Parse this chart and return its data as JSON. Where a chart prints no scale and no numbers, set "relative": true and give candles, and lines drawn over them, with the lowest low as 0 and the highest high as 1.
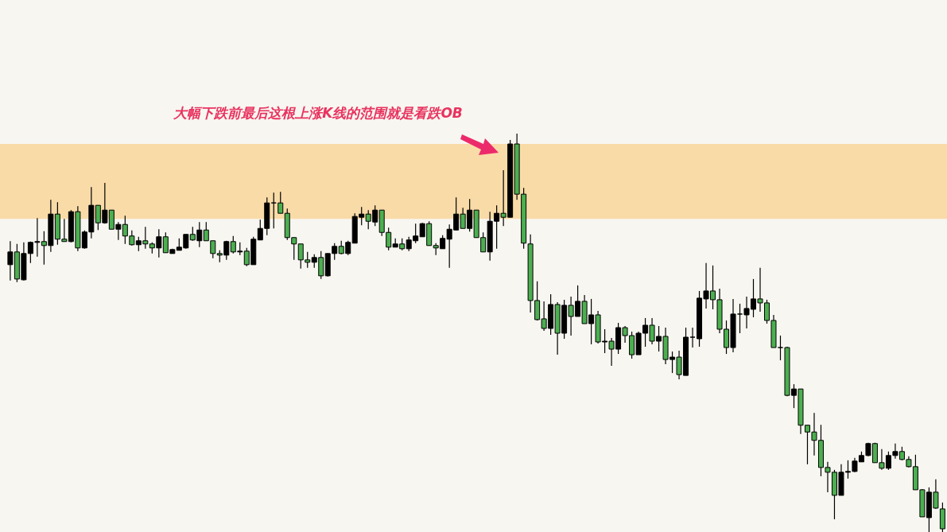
{
  "chart_data": {
    "type": "candlestick",
    "relative": true,
    "annotations": [
      "大幅下跌前最后这根上涨K线的范围就是看跌OB"
    ],
    "bands": [
      {
        "axis": "y",
        "from": 0.786,
        "to": 0.974,
        "color": "#f9dba8"
      }
    ],
    "categories": [
      null,
      null,
      null,
      null,
      null,
      null,
      null,
      null,
      null,
      null,
      null,
      null,
      null,
      null,
      null,
      null,
      null,
      null,
      null,
      null,
      null,
      null,
      null,
      null,
      null,
      null,
      null,
      null,
      null,
      null,
      null,
      null,
      null,
      null,
      null,
      null,
      null,
      null,
      null,
      null,
      null,
      null,
      null,
      null,
      null,
      null,
      null,
      null,
      null,
      null,
      null,
      null,
      null,
      null,
      null,
      null,
      null,
      null,
      null,
      null,
      null,
      null,
      null,
      null,
      null,
      null,
      null,
      null,
      null,
      null,
      null,
      null,
      null,
      null,
      null,
      null,
      null,
      null,
      null,
      null,
      null,
      null,
      null,
      null,
      null,
      null,
      null,
      null,
      null,
      null,
      null,
      null,
      null,
      null,
      null,
      null,
      null,
      null,
      null,
      null,
      null,
      null,
      null,
      null,
      null,
      null,
      null,
      null,
      null,
      null,
      null,
      null,
      null,
      null,
      null,
      null,
      null,
      null,
      null,
      null,
      null,
      null,
      null,
      null,
      null,
      null,
      null,
      null,
      null,
      null,
      null,
      null,
      null,
      null,
      null,
      null,
      null,
      null,
      null
    ],
    "ohlc": [
      [
        0.671,
        0.73,
        0.631,
        0.703
      ],
      [
        0.703,
        0.723,
        0.627,
        0.635
      ],
      [
        0.633,
        0.727,
        0.631,
        0.699
      ],
      [
        0.699,
        0.729,
        0.675,
        0.727
      ],
      [
        0.727,
        0.788,
        0.691,
        0.729
      ],
      [
        0.729,
        0.755,
        0.671,
        0.719
      ],
      [
        0.719,
        0.834,
        0.703,
        0.798
      ],
      [
        0.798,
        0.828,
        0.721,
        0.735
      ],
      [
        0.735,
        0.786,
        0.729,
        0.729
      ],
      [
        0.729,
        0.808,
        0.727,
        0.804
      ],
      [
        0.804,
        0.818,
        0.705,
        0.713
      ],
      [
        0.713,
        0.757,
        0.711,
        0.753
      ],
      [
        0.753,
        0.866,
        0.737,
        0.82
      ],
      [
        0.82,
        0.82,
        0.758,
        0.776
      ],
      [
        0.776,
        0.876,
        0.774,
        0.808
      ],
      [
        0.808,
        0.808,
        0.76,
        0.76
      ],
      [
        0.76,
        0.778,
        0.733,
        0.772
      ],
      [
        0.772,
        0.794,
        0.723,
        0.743
      ],
      [
        0.743,
        0.757,
        0.719,
        0.721
      ],
      [
        0.721,
        0.741,
        0.705,
        0.731
      ],
      [
        0.731,
        0.766,
        0.711,
        0.723
      ],
      [
        0.723,
        0.727,
        0.699,
        0.713
      ],
      [
        0.713,
        0.76,
        0.689,
        0.741
      ],
      [
        0.741,
        0.752,
        0.701,
        0.701
      ],
      [
        0.699,
        0.711,
        0.699,
        0.709
      ],
      [
        0.707,
        0.737,
        0.707,
        0.715
      ],
      [
        0.713,
        0.747,
        0.711,
        0.747
      ],
      [
        0.747,
        0.766,
        0.731,
        0.733
      ],
      [
        0.731,
        0.778,
        0.715,
        0.758
      ],
      [
        0.758,
        0.778,
        0.731,
        0.731
      ],
      [
        0.731,
        0.731,
        0.687,
        0.699
      ],
      [
        0.699,
        0.707,
        0.677,
        0.695
      ],
      [
        0.695,
        0.731,
        0.683,
        0.729
      ],
      [
        0.729,
        0.743,
        0.699,
        0.703
      ],
      [
        0.703,
        0.727,
        0.695,
        0.705
      ],
      [
        0.705,
        0.713,
        0.667,
        0.671
      ],
      [
        0.671,
        0.741,
        0.671,
        0.735
      ],
      [
        0.733,
        0.784,
        0.733,
        0.762
      ],
      [
        0.762,
        0.84,
        0.745,
        0.826
      ],
      [
        0.826,
        0.852,
        0.762,
        0.826
      ],
      [
        0.826,
        0.854,
        0.8,
        0.8
      ],
      [
        0.8,
        0.812,
        0.733,
        0.739
      ],
      [
        0.739,
        0.739,
        0.683,
        0.723
      ],
      [
        0.723,
        0.723,
        0.661,
        0.683
      ],
      [
        0.683,
        0.703,
        0.663,
        0.677
      ],
      [
        0.677,
        0.697,
        0.663,
        0.689
      ],
      [
        0.689,
        0.705,
        0.635,
        0.643
      ],
      [
        0.643,
        0.699,
        0.641,
        0.699
      ],
      [
        0.699,
        0.725,
        0.683,
        0.717
      ],
      [
        0.717,
        0.731,
        0.697,
        0.699
      ],
      [
        0.699,
        0.731,
        0.695,
        0.727
      ],
      [
        0.725,
        0.8,
        0.725,
        0.792
      ],
      [
        0.79,
        0.816,
        0.77,
        0.798
      ],
      [
        0.798,
        0.808,
        0.76,
        0.78
      ],
      [
        0.778,
        0.82,
        0.768,
        0.808
      ],
      [
        0.808,
        0.808,
        0.743,
        0.752
      ],
      [
        0.752,
        0.764,
        0.707,
        0.715
      ],
      [
        0.715,
        0.737,
        0.715,
        0.723
      ],
      [
        0.723,
        0.737,
        0.707,
        0.711
      ],
      [
        0.711,
        0.741,
        0.705,
        0.733
      ],
      [
        0.731,
        0.774,
        0.725,
        0.743
      ],
      [
        0.741,
        0.776,
        0.741,
        0.774
      ],
      [
        0.774,
        0.78,
        0.719,
        0.719
      ],
      [
        0.719,
        0.725,
        0.695,
        0.713
      ],
      [
        0.711,
        0.745,
        0.711,
        0.737
      ],
      [
        0.735,
        0.772,
        0.663,
        0.76
      ],
      [
        0.758,
        0.84,
        0.758,
        0.798
      ],
      [
        0.798,
        0.814,
        0.762,
        0.762
      ],
      [
        0.762,
        0.836,
        0.754,
        0.808
      ],
      [
        0.808,
        0.808,
        0.739,
        0.739
      ],
      [
        0.739,
        0.752,
        0.703,
        0.703
      ],
      [
        0.703,
        0.804,
        0.681,
        0.78
      ],
      [
        0.78,
        0.82,
        0.711,
        0.8
      ],
      [
        0.8,
        0.908,
        0.768,
        0.79
      ],
      [
        0.79,
        0.984,
        0.79,
        0.974
      ],
      [
        0.974,
        1,
        0.834,
        0.848
      ],
      [
        0.848,
        0.864,
        0.711,
        0.725
      ],
      [
        0.723,
        0.747,
        0.551,
        0.581
      ],
      [
        0.581,
        0.629,
        0.531,
        0.533
      ],
      [
        0.535,
        0.579,
        0.505,
        0.511
      ],
      [
        0.511,
        0.597,
        0.495,
        0.571
      ],
      [
        0.571,
        0.577,
        0.445,
        0.499
      ],
      [
        0.499,
        0.583,
        0.485,
        0.569
      ],
      [
        0.569,
        0.591,
        0.493,
        0.541
      ],
      [
        0.541,
        0.619,
        0.541,
        0.579
      ],
      [
        0.579,
        0.595,
        0.523,
        0.523
      ],
      [
        0.523,
        0.585,
        0.471,
        0.545
      ],
      [
        0.545,
        0.555,
        0.473,
        0.477
      ],
      [
        0.477,
        0.509,
        0.449,
        0.479
      ],
      [
        0.479,
        0.487,
        0.417,
        0.459
      ],
      [
        0.459,
        0.525,
        0.447,
        0.513
      ],
      [
        0.513,
        0.517,
        0.475,
        0.493
      ],
      [
        0.493,
        0.503,
        0.435,
        0.445
      ],
      [
        0.445,
        0.503,
        0.445,
        0.499
      ],
      [
        0.499,
        0.537,
        0.465,
        0.519
      ],
      [
        0.519,
        0.537,
        0.471,
        0.479
      ],
      [
        0.479,
        0.517,
        0.453,
        0.491
      ],
      [
        0.491,
        0.513,
        0.421,
        0.433
      ],
      [
        0.433,
        0.453,
        0.399,
        0.439
      ],
      [
        0.439,
        0.455,
        0.383,
        0.395
      ],
      [
        0.393,
        0.513,
        0.393,
        0.489
      ],
      [
        0.489,
        0.513,
        0.463,
        0.489
      ],
      [
        0.485,
        0.605,
        0.465,
        0.587
      ],
      [
        0.585,
        0.675,
        0.561,
        0.605
      ],
      [
        0.605,
        0.669,
        0.559,
        0.583
      ],
      [
        0.583,
        0.611,
        0.499,
        0.509
      ],
      [
        0.509,
        0.531,
        0.447,
        0.463
      ],
      [
        0.463,
        0.585,
        0.451,
        0.547
      ],
      [
        0.547,
        0.573,
        0.499,
        0.547
      ],
      [
        0.545,
        0.591,
        0.511,
        0.561
      ],
      [
        0.559,
        0.635,
        0.539,
        0.585
      ],
      [
        0.585,
        0.663,
        0.553,
        0.575
      ],
      [
        0.575,
        0.583,
        0.523,
        0.531
      ],
      [
        0.531,
        0.545,
        0.463,
        0.463
      ],
      [
        0.463,
        0.493,
        0.431,
        0.463
      ],
      [
        0.463,
        0.465,
        0.341,
        0.343
      ],
      [
        0.343,
        0.371,
        0.311,
        0.359
      ],
      [
        0.359,
        0.359,
        0.246,
        0.268
      ],
      [
        0.268,
        0.268,
        0.17,
        0.251
      ],
      [
        0.251,
        0.299,
        0.192,
        0.23
      ],
      [
        0.23,
        0.269,
        0.14,
        0.162
      ],
      [
        0.162,
        0.176,
        0.1,
        0.15
      ],
      [
        0.15,
        0.156,
        0.032,
        0.092
      ],
      [
        0.092,
        0.17,
        0.092,
        0.15
      ],
      [
        0.15,
        0.18,
        0.134,
        0.152
      ],
      [
        0.152,
        0.186,
        0.15,
        0.178
      ],
      [
        0.176,
        0.202,
        0.176,
        0.192
      ],
      [
        0.192,
        0.224,
        0.19,
        0.222
      ],
      [
        0.222,
        0.224,
        0.174,
        0.174
      ],
      [
        0.174,
        0.208,
        0.156,
        0.16
      ],
      [
        0.16,
        0.202,
        0.156,
        0.192
      ],
      [
        0.192,
        0.222,
        0.184,
        0.202
      ],
      [
        0.202,
        0.214,
        0.18,
        0.182
      ],
      [
        0.182,
        0.19,
        0.162,
        0.164
      ],
      [
        0.164,
        0.194,
        0.106,
        0.106
      ],
      [
        0.106,
        0.108,
        0.038,
        0.038
      ],
      [
        0.036,
        0.112,
        0,
        0.1
      ],
      [
        0.1,
        0.132,
        0.058,
        0.06
      ],
      [
        0.058,
        0.074,
        0,
        0.008
      ]
    ],
    "colors": [
      "#000000",
      "#4caf50",
      "#000000",
      "#000000",
      "#000000",
      "#4caf50",
      "#000000",
      "#4caf50",
      "#4caf50",
      "#000000",
      "#4caf50",
      "#000000",
      "#000000",
      "#4caf50",
      "#000000",
      "#4caf50",
      "#000000",
      "#4caf50",
      "#4caf50",
      "#000000",
      "#4caf50",
      "#4caf50",
      "#000000",
      "#4caf50",
      "#000000",
      "#000000",
      "#000000",
      "#4caf50",
      "#000000",
      "#4caf50",
      "#4caf50",
      "#4caf50",
      "#000000",
      "#4caf50",
      "#000000",
      "#4caf50",
      "#000000",
      "#000000",
      "#000000",
      "#000000",
      "#4caf50",
      "#4caf50",
      "#4caf50",
      "#4caf50",
      "#4caf50",
      "#000000",
      "#4caf50",
      "#000000",
      "#000000",
      "#4caf50",
      "#000000",
      "#000000",
      "#000000",
      "#4caf50",
      "#000000",
      "#4caf50",
      "#4caf50",
      "#000000",
      "#4caf50",
      "#000000",
      "#000000",
      "#000000",
      "#4caf50",
      "#4caf50",
      "#000000",
      "#000000",
      "#000000",
      "#4caf50",
      "#000000",
      "#4caf50",
      "#4caf50",
      "#000000",
      "#000000",
      "#4caf50",
      "#000000",
      "#4caf50",
      "#4caf50",
      "#4caf50",
      "#4caf50",
      "#4caf50",
      "#000000",
      "#4caf50",
      "#000000",
      "#4caf50",
      "#000000",
      "#4caf50",
      "#000000",
      "#4caf50",
      "#000000",
      "#4caf50",
      "#000000",
      "#4caf50",
      "#4caf50",
      "#000000",
      "#000000",
      "#4caf50",
      "#000000",
      "#4caf50",
      "#000000",
      "#4caf50",
      "#000000",
      "#000000",
      "#000000",
      "#000000",
      "#4caf50",
      "#4caf50",
      "#4caf50",
      "#000000",
      "#000000",
      "#000000",
      "#000000",
      "#4caf50",
      "#4caf50",
      "#4caf50",
      "#000000",
      "#4caf50",
      "#000000",
      "#4caf50",
      "#4caf50",
      "#4caf50",
      "#4caf50",
      "#4caf50",
      "#4caf50",
      "#000000",
      "#000000",
      "#000000",
      "#000000",
      "#000000",
      "#4caf50",
      "#4caf50",
      "#000000",
      "#000000",
      "#4caf50",
      "#4caf50",
      "#4caf50",
      "#4caf50",
      "#000000",
      "#4caf50",
      "#4caf50"
    ]
  }
}
